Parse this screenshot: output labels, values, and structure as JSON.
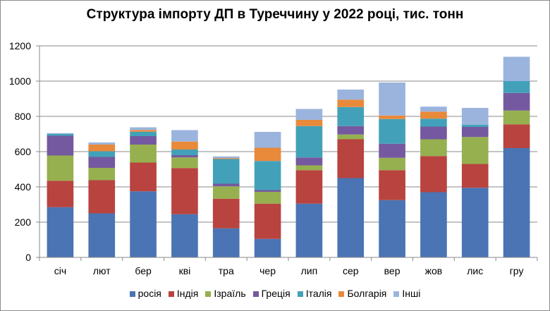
{
  "chart_data": {
    "type": "bar",
    "stacked": true,
    "title": "Структура імпорту ДП в Туреччину у 2022 році, тис. тонн",
    "xlabel": "",
    "ylabel": "",
    "ylim": [
      0,
      1200
    ],
    "yticks": [
      0,
      200,
      400,
      600,
      800,
      1000,
      1200
    ],
    "grid": true,
    "legend_position": "bottom",
    "categories": [
      "січ",
      "лют",
      "бер",
      "кві",
      "тра",
      "чер",
      "лип",
      "сер",
      "вер",
      "жов",
      "лис",
      "гру"
    ],
    "series": [
      {
        "name": "росія",
        "color": "#4a74b3",
        "values": [
          285,
          250,
          375,
          245,
          165,
          105,
          305,
          450,
          325,
          370,
          395,
          620
        ]
      },
      {
        "name": "Індія",
        "color": "#b8433f",
        "values": [
          150,
          188,
          163,
          262,
          168,
          200,
          190,
          220,
          170,
          205,
          135,
          135
        ]
      },
      {
        "name": "Ізраїль",
        "color": "#96b04f",
        "values": [
          143,
          70,
          102,
          60,
          70,
          67,
          27,
          27,
          70,
          95,
          153,
          78
        ]
      },
      {
        "name": "Греція",
        "color": "#7459a0",
        "values": [
          112,
          62,
          48,
          13,
          15,
          10,
          45,
          48,
          80,
          72,
          57,
          100
        ]
      },
      {
        "name": "Італія",
        "color": "#42a1b9",
        "values": [
          10,
          32,
          25,
          32,
          140,
          165,
          178,
          108,
          140,
          45,
          13,
          67
        ]
      },
      {
        "name": "Болгарія",
        "color": "#e9893a",
        "values": [
          0,
          38,
          10,
          45,
          5,
          75,
          35,
          42,
          20,
          40,
          0,
          0
        ]
      },
      {
        "name": "Інші",
        "color": "#9ab4dd",
        "values": [
          5,
          12,
          15,
          65,
          10,
          90,
          62,
          57,
          187,
          28,
          95,
          138
        ]
      }
    ]
  }
}
